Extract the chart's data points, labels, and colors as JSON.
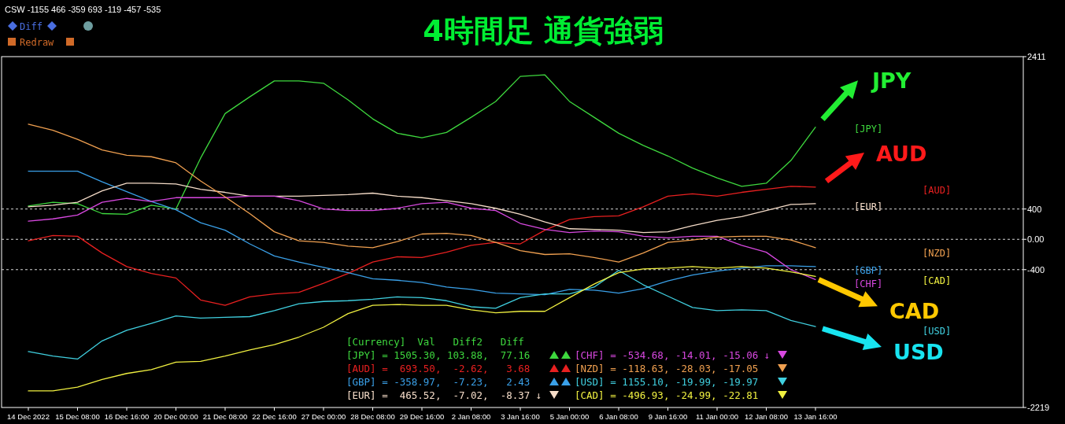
{
  "chart_data": {
    "type": "line",
    "title": "4時間足 通貨強弱",
    "legend_title": "[Currency]  Val   Diff2   Diff",
    "categories": [
      "14 Dec 2022",
      null,
      "15 Dec 08:00",
      null,
      "16 Dec 16:00",
      null,
      "20 Dec 00:00",
      null,
      "21 Dec 08:00",
      null,
      "22 Dec 16:00",
      null,
      "27 Dec 00:00",
      null,
      "28 Dec 08:00",
      null,
      "29 Dec 16:00",
      null,
      "2 Jan 08:00",
      null,
      "3 Jan 16:00",
      null,
      "5 Jan 00:00",
      null,
      "6 Jan 08:00",
      null,
      "9 Jan 16:00",
      null,
      "11 Jan 00:00",
      null,
      "12 Jan 08:00",
      null,
      "13 Jan 16:00",
      null,
      null,
      null,
      null,
      null,
      null,
      null,
      null
    ],
    "series": [
      {
        "name": "[JPY] = 1505.30, 103.88,  77.16",
        "color": "#3ed83e",
        "values": [
          440,
          490,
          470,
          340,
          330,
          450,
          400,
          1070,
          1660,
          1880,
          2090,
          2090,
          2060,
          1840,
          1590,
          1400,
          1340,
          1410,
          1610,
          1820,
          2150,
          2170,
          1820,
          1610,
          1400,
          1240,
          1100,
          940,
          810,
          700,
          740,
          1040,
          1480,
          null,
          null,
          null,
          null,
          null,
          null,
          null,
          null
        ]
      },
      {
        "name": "[AUD] =  693.50,  -2.62,   3.68",
        "color": "#e82020",
        "values": [
          -20,
          50,
          40,
          -180,
          -360,
          -450,
          -510,
          -800,
          -870,
          -760,
          -720,
          -700,
          -580,
          -450,
          -300,
          -230,
          -240,
          -170,
          -80,
          -40,
          -60,
          120,
          260,
          300,
          310,
          430,
          570,
          600,
          570,
          620,
          660,
          700,
          690,
          null,
          null,
          null,
          null,
          null,
          null,
          null,
          null
        ]
      },
      {
        "name": "[GBP] = -358.97,  -7.23,   2.43",
        "color": "#3aa0e8",
        "values": [
          900,
          900,
          900,
          760,
          630,
          500,
          390,
          220,
          120,
          -60,
          -220,
          -300,
          -370,
          -440,
          -520,
          -540,
          -570,
          -630,
          -660,
          -710,
          -720,
          -730,
          -660,
          -670,
          -710,
          -650,
          -550,
          -470,
          -420,
          -380,
          -350,
          -350,
          -360,
          null,
          null,
          null,
          null,
          null,
          null,
          null,
          null
        ]
      },
      {
        "name": "[EUR] =  465.52,  -7.02,  -8.37 ↓",
        "color": "#f5dcc8",
        "values": [
          430,
          450,
          490,
          640,
          740,
          740,
          730,
          660,
          620,
          570,
          570,
          570,
          580,
          590,
          610,
          570,
          550,
          510,
          470,
          410,
          330,
          230,
          140,
          130,
          120,
          90,
          100,
          180,
          250,
          300,
          380,
          460,
          470,
          null,
          null,
          null,
          null,
          null,
          null,
          null,
          null
        ]
      },
      {
        "name": "[CHF] = -534.68, -14.01, -15.06 ↓",
        "color": "#d848e0",
        "values": [
          240,
          270,
          320,
          490,
          540,
          500,
          550,
          550,
          550,
          570,
          570,
          510,
          400,
          380,
          380,
          410,
          470,
          490,
          410,
          380,
          210,
          130,
          90,
          110,
          100,
          40,
          20,
          40,
          40,
          -80,
          -170,
          -400,
          -530,
          null,
          null,
          null,
          null,
          null,
          null,
          null,
          null
        ]
      },
      {
        "name": "[NZD] = -118.63, -28.03, -17.05",
        "color": "#f0a050",
        "values": [
          1520,
          1440,
          1320,
          1180,
          1110,
          1090,
          1010,
          770,
          560,
          340,
          100,
          -20,
          -40,
          -90,
          -110,
          -30,
          70,
          80,
          50,
          -40,
          -150,
          -200,
          -190,
          -240,
          -300,
          -180,
          -40,
          -10,
          30,
          40,
          40,
          -10,
          -110,
          null,
          null,
          null,
          null,
          null,
          null,
          null,
          null
        ]
      },
      {
        "name": "[USD] = 1155.10, -19.99, -19.97",
        "color": "#40d0e0",
        "values": [
          -1480,
          -1540,
          -1580,
          -1340,
          -1200,
          -1110,
          -1010,
          -1040,
          -1030,
          -1020,
          -940,
          -850,
          -820,
          -810,
          -790,
          -760,
          -770,
          -810,
          -890,
          -910,
          -770,
          -720,
          -720,
          -630,
          -410,
          -600,
          -750,
          -900,
          -940,
          -930,
          -940,
          -1070,
          -1150,
          null,
          null,
          null,
          null,
          null,
          null,
          null,
          null
        ]
      },
      {
        "name": "[CAD] = -496.93, -24.99, -22.81",
        "color": "#f0f040",
        "values": [
          -2000,
          -2000,
          -1950,
          -1850,
          -1770,
          -1720,
          -1620,
          -1610,
          -1540,
          -1460,
          -1390,
          -1290,
          -1160,
          -980,
          -870,
          -860,
          -870,
          -870,
          -930,
          -970,
          -950,
          -950,
          -770,
          -590,
          -440,
          -390,
          -380,
          -360,
          -380,
          -360,
          -380,
          -430,
          -490,
          null,
          null,
          null,
          null,
          null,
          null,
          null,
          null
        ]
      }
    ],
    "ylim": [
      -2219,
      2411
    ],
    "yticks": [
      2411,
      400,
      {
        "value": 0,
        "label": "0.00"
      },
      -400,
      -2219
    ],
    "grid": "y",
    "legend": "bottom",
    "annotations": [
      "CSW -1155 466 -359 693 -119 -457 -535",
      "Diff",
      "Redraw",
      "[JPY]",
      "[AUD]",
      "[EUR]",
      "[NZD]",
      "[GBP]",
      "[CAD]",
      "[CHF]",
      "[USD]",
      "JPY",
      "AUD",
      "CAD",
      "USD"
    ]
  }
}
